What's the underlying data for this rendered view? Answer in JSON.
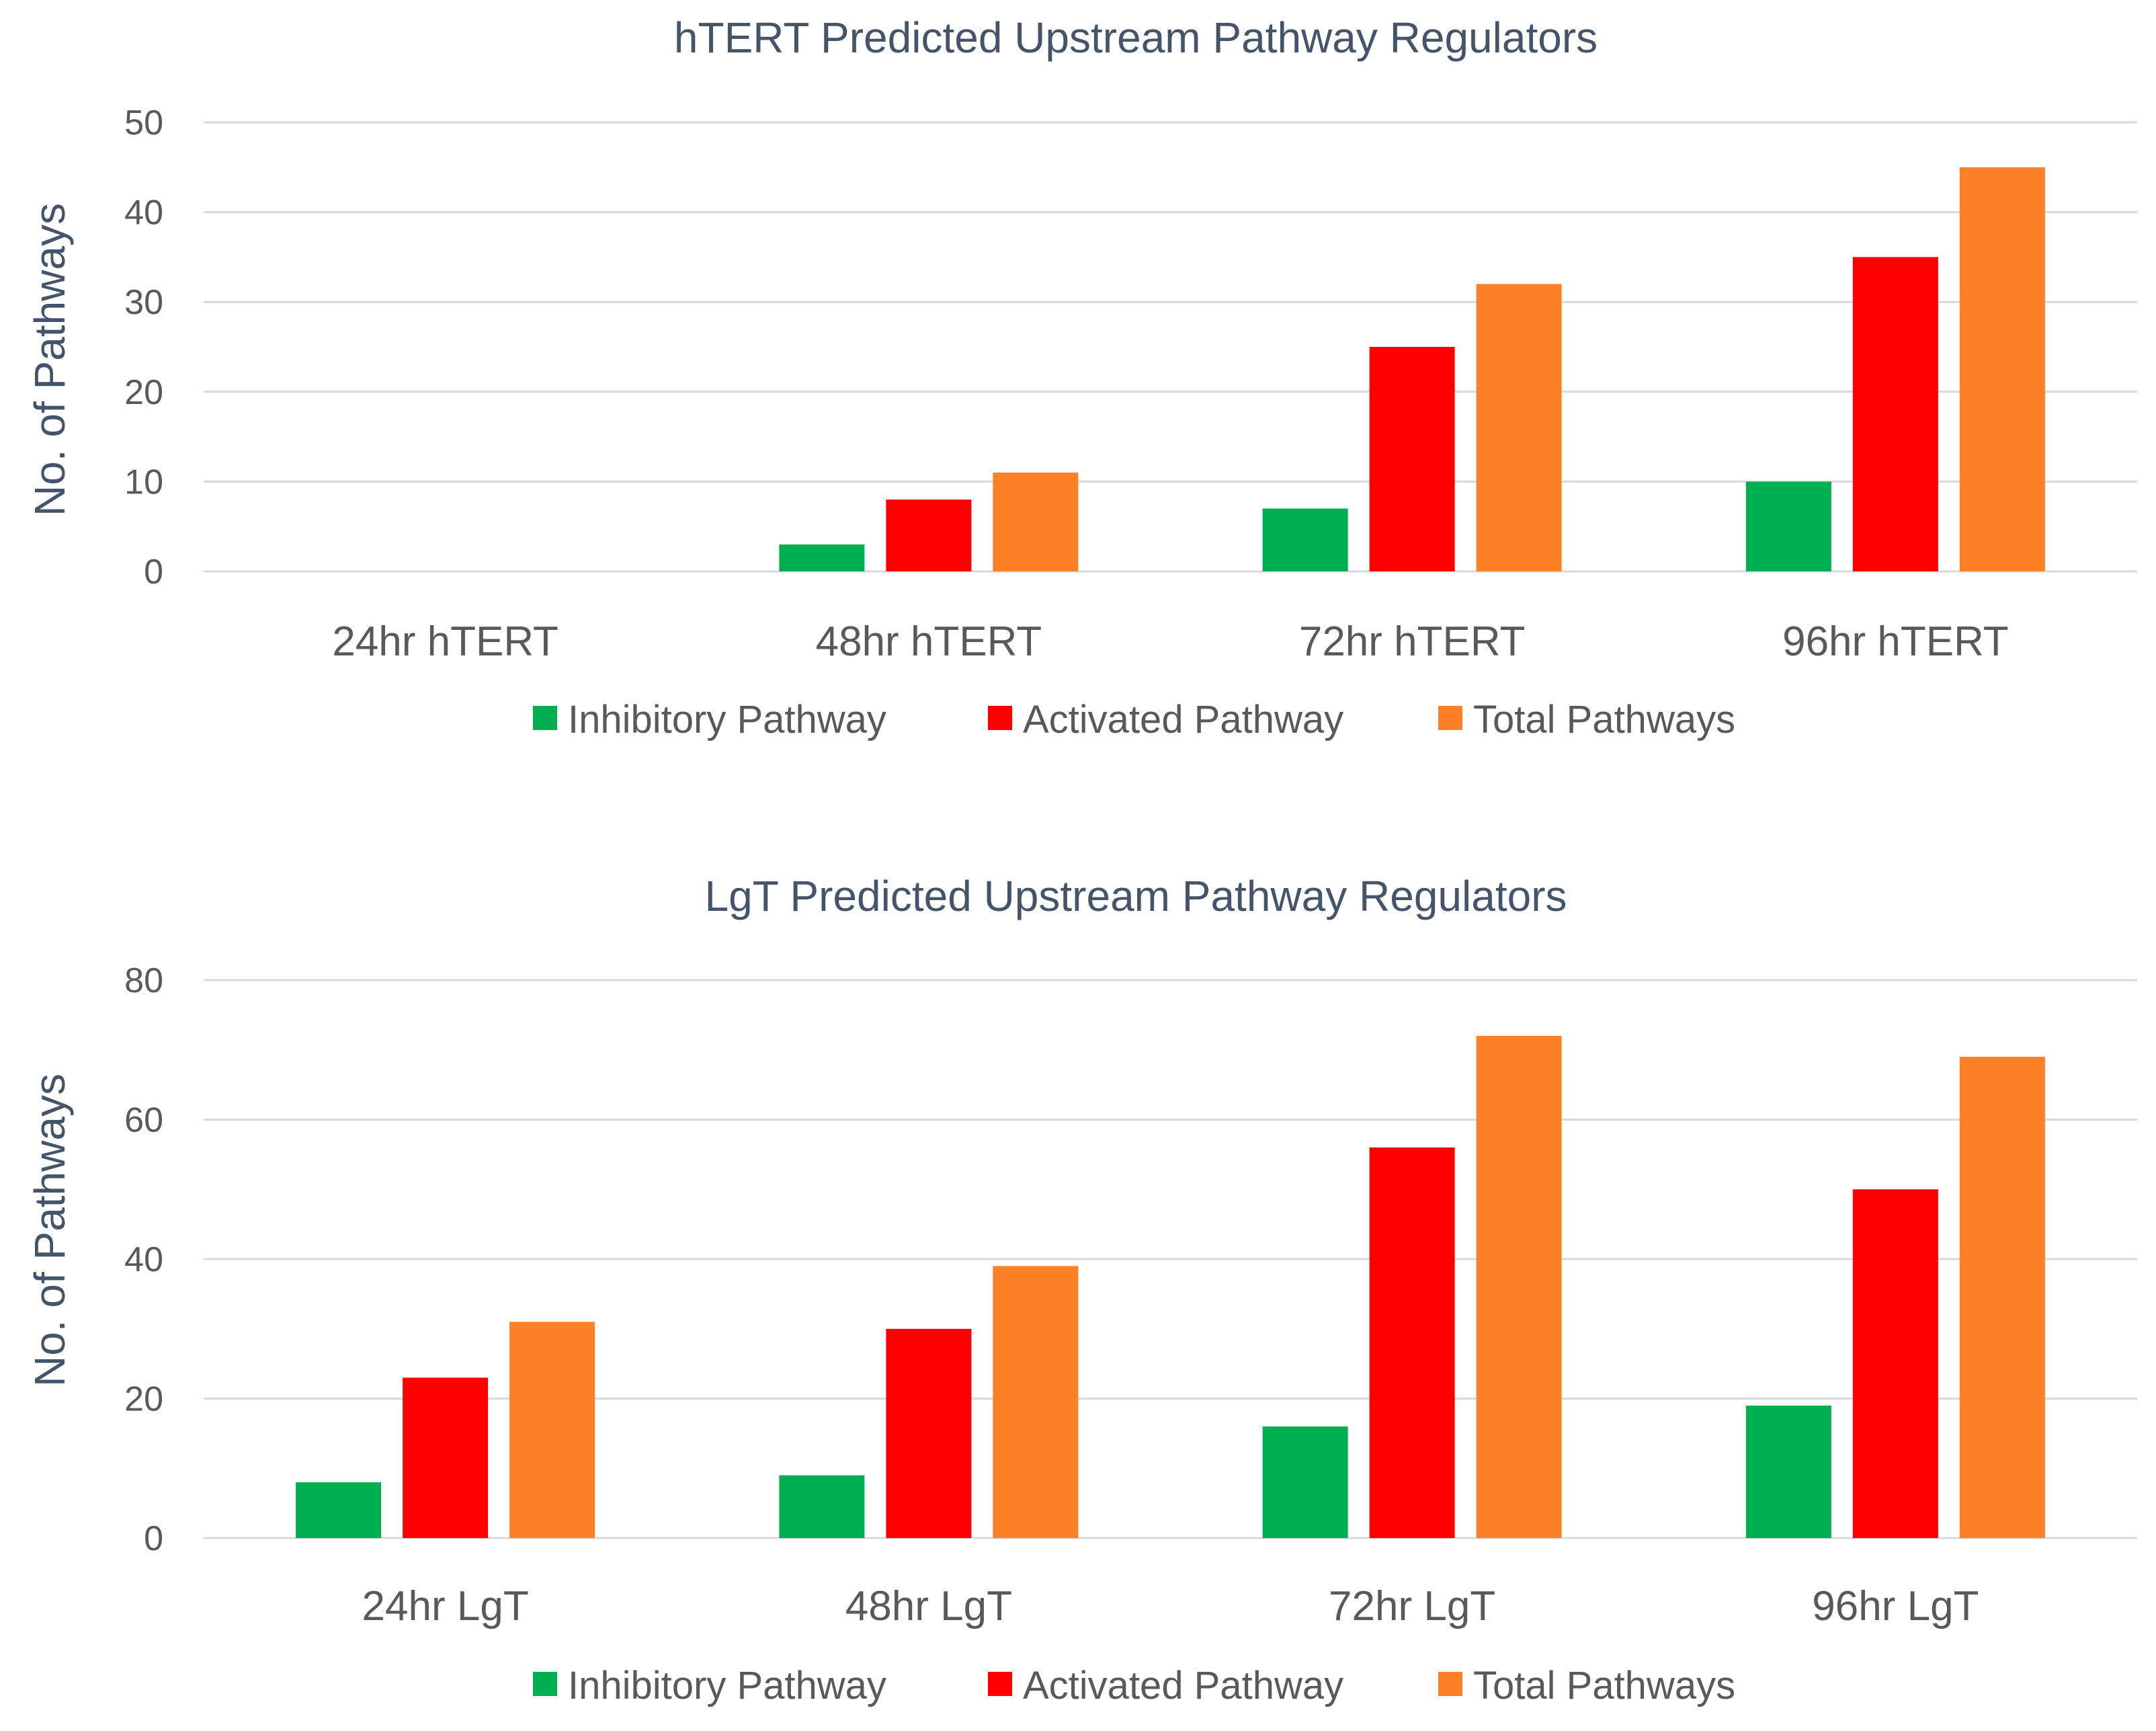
{
  "chart_data": [
    {
      "type": "bar",
      "title": "hTERT Predicted Upstream Pathway Regulators",
      "xlabel": "",
      "ylabel": "No. of Pathways",
      "ylim": [
        0,
        50
      ],
      "yticks": [
        0,
        10,
        20,
        30,
        40,
        50
      ],
      "grid": true,
      "legend_position": "bottom",
      "categories": [
        "24hr hTERT",
        "48hr hTERT",
        "72hr hTERT",
        "96hr hTERT"
      ],
      "series": [
        {
          "name": "Inhibitory Pathway",
          "color": "#00b050",
          "values": [
            0,
            3,
            7,
            10
          ]
        },
        {
          "name": "Activated Pathway",
          "color": "#ff0000",
          "values": [
            0,
            8,
            25,
            35
          ]
        },
        {
          "name": "Total Pathways",
          "color": "#fd7f26",
          "values": [
            0,
            11,
            32,
            45
          ]
        }
      ]
    },
    {
      "type": "bar",
      "title": "LgT Predicted Upstream Pathway Regulators",
      "xlabel": "",
      "ylabel": "No. of Pathways",
      "ylim": [
        0,
        80
      ],
      "yticks": [
        0,
        20,
        40,
        60,
        80
      ],
      "grid": true,
      "legend_position": "bottom",
      "categories": [
        "24hr LgT",
        "48hr LgT",
        "72hr LgT",
        "96hr LgT"
      ],
      "series": [
        {
          "name": "Inhibitory Pathway",
          "color": "#00b050",
          "values": [
            8,
            9,
            16,
            19
          ]
        },
        {
          "name": "Activated Pathway",
          "color": "#ff0000",
          "values": [
            23,
            30,
            56,
            50
          ]
        },
        {
          "name": "Total Pathways",
          "color": "#fd7f26",
          "values": [
            31,
            39,
            72,
            69
          ]
        }
      ]
    }
  ]
}
